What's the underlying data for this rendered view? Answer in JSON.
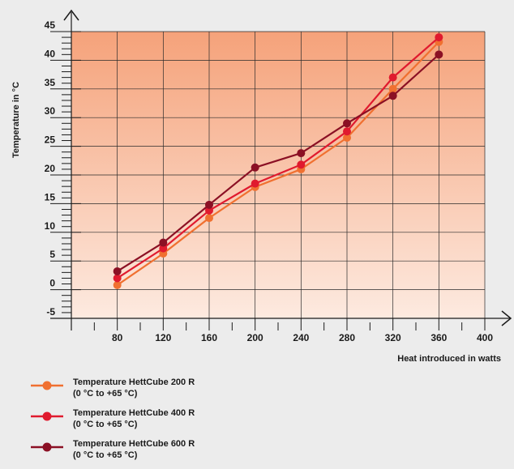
{
  "chart_data": {
    "type": "line",
    "xlabel": "Heat introduced in watts",
    "ylabel": "Temperature in °C",
    "x_ticks": [
      "80",
      "120",
      "160",
      "200",
      "240",
      "280",
      "320",
      "360",
      "400"
    ],
    "y_ticks": [
      "45",
      "40",
      "35",
      "30",
      "25",
      "20",
      "15",
      "10",
      "5",
      "0",
      "-5"
    ],
    "xlim": [
      40,
      400
    ],
    "ylim": [
      -5,
      45
    ],
    "x": [
      80,
      120,
      160,
      200,
      240,
      280,
      320,
      360
    ],
    "grid": true,
    "legend_position": "bottom-left",
    "series": [
      {
        "name": "Temperature HettCube 200 R",
        "range": "(0 °C to +65 °C)",
        "color": "#f07030",
        "values": [
          0.8,
          6.3,
          12.5,
          17.9,
          21.0,
          26.5,
          35.0,
          43.2
        ]
      },
      {
        "name": "Temperature HettCube 400 R",
        "range": "(0 °C to +65 °C)",
        "color": "#e01a2e",
        "values": [
          2.0,
          7.2,
          13.8,
          18.5,
          21.8,
          27.6,
          37.0,
          44.0
        ]
      },
      {
        "name": "Temperature HettCube 600 R",
        "range": "(0 °C to +65 °C)",
        "color": "#8b1024",
        "values": [
          3.2,
          8.2,
          14.8,
          21.3,
          23.8,
          29.0,
          33.8,
          41.0
        ]
      }
    ]
  }
}
